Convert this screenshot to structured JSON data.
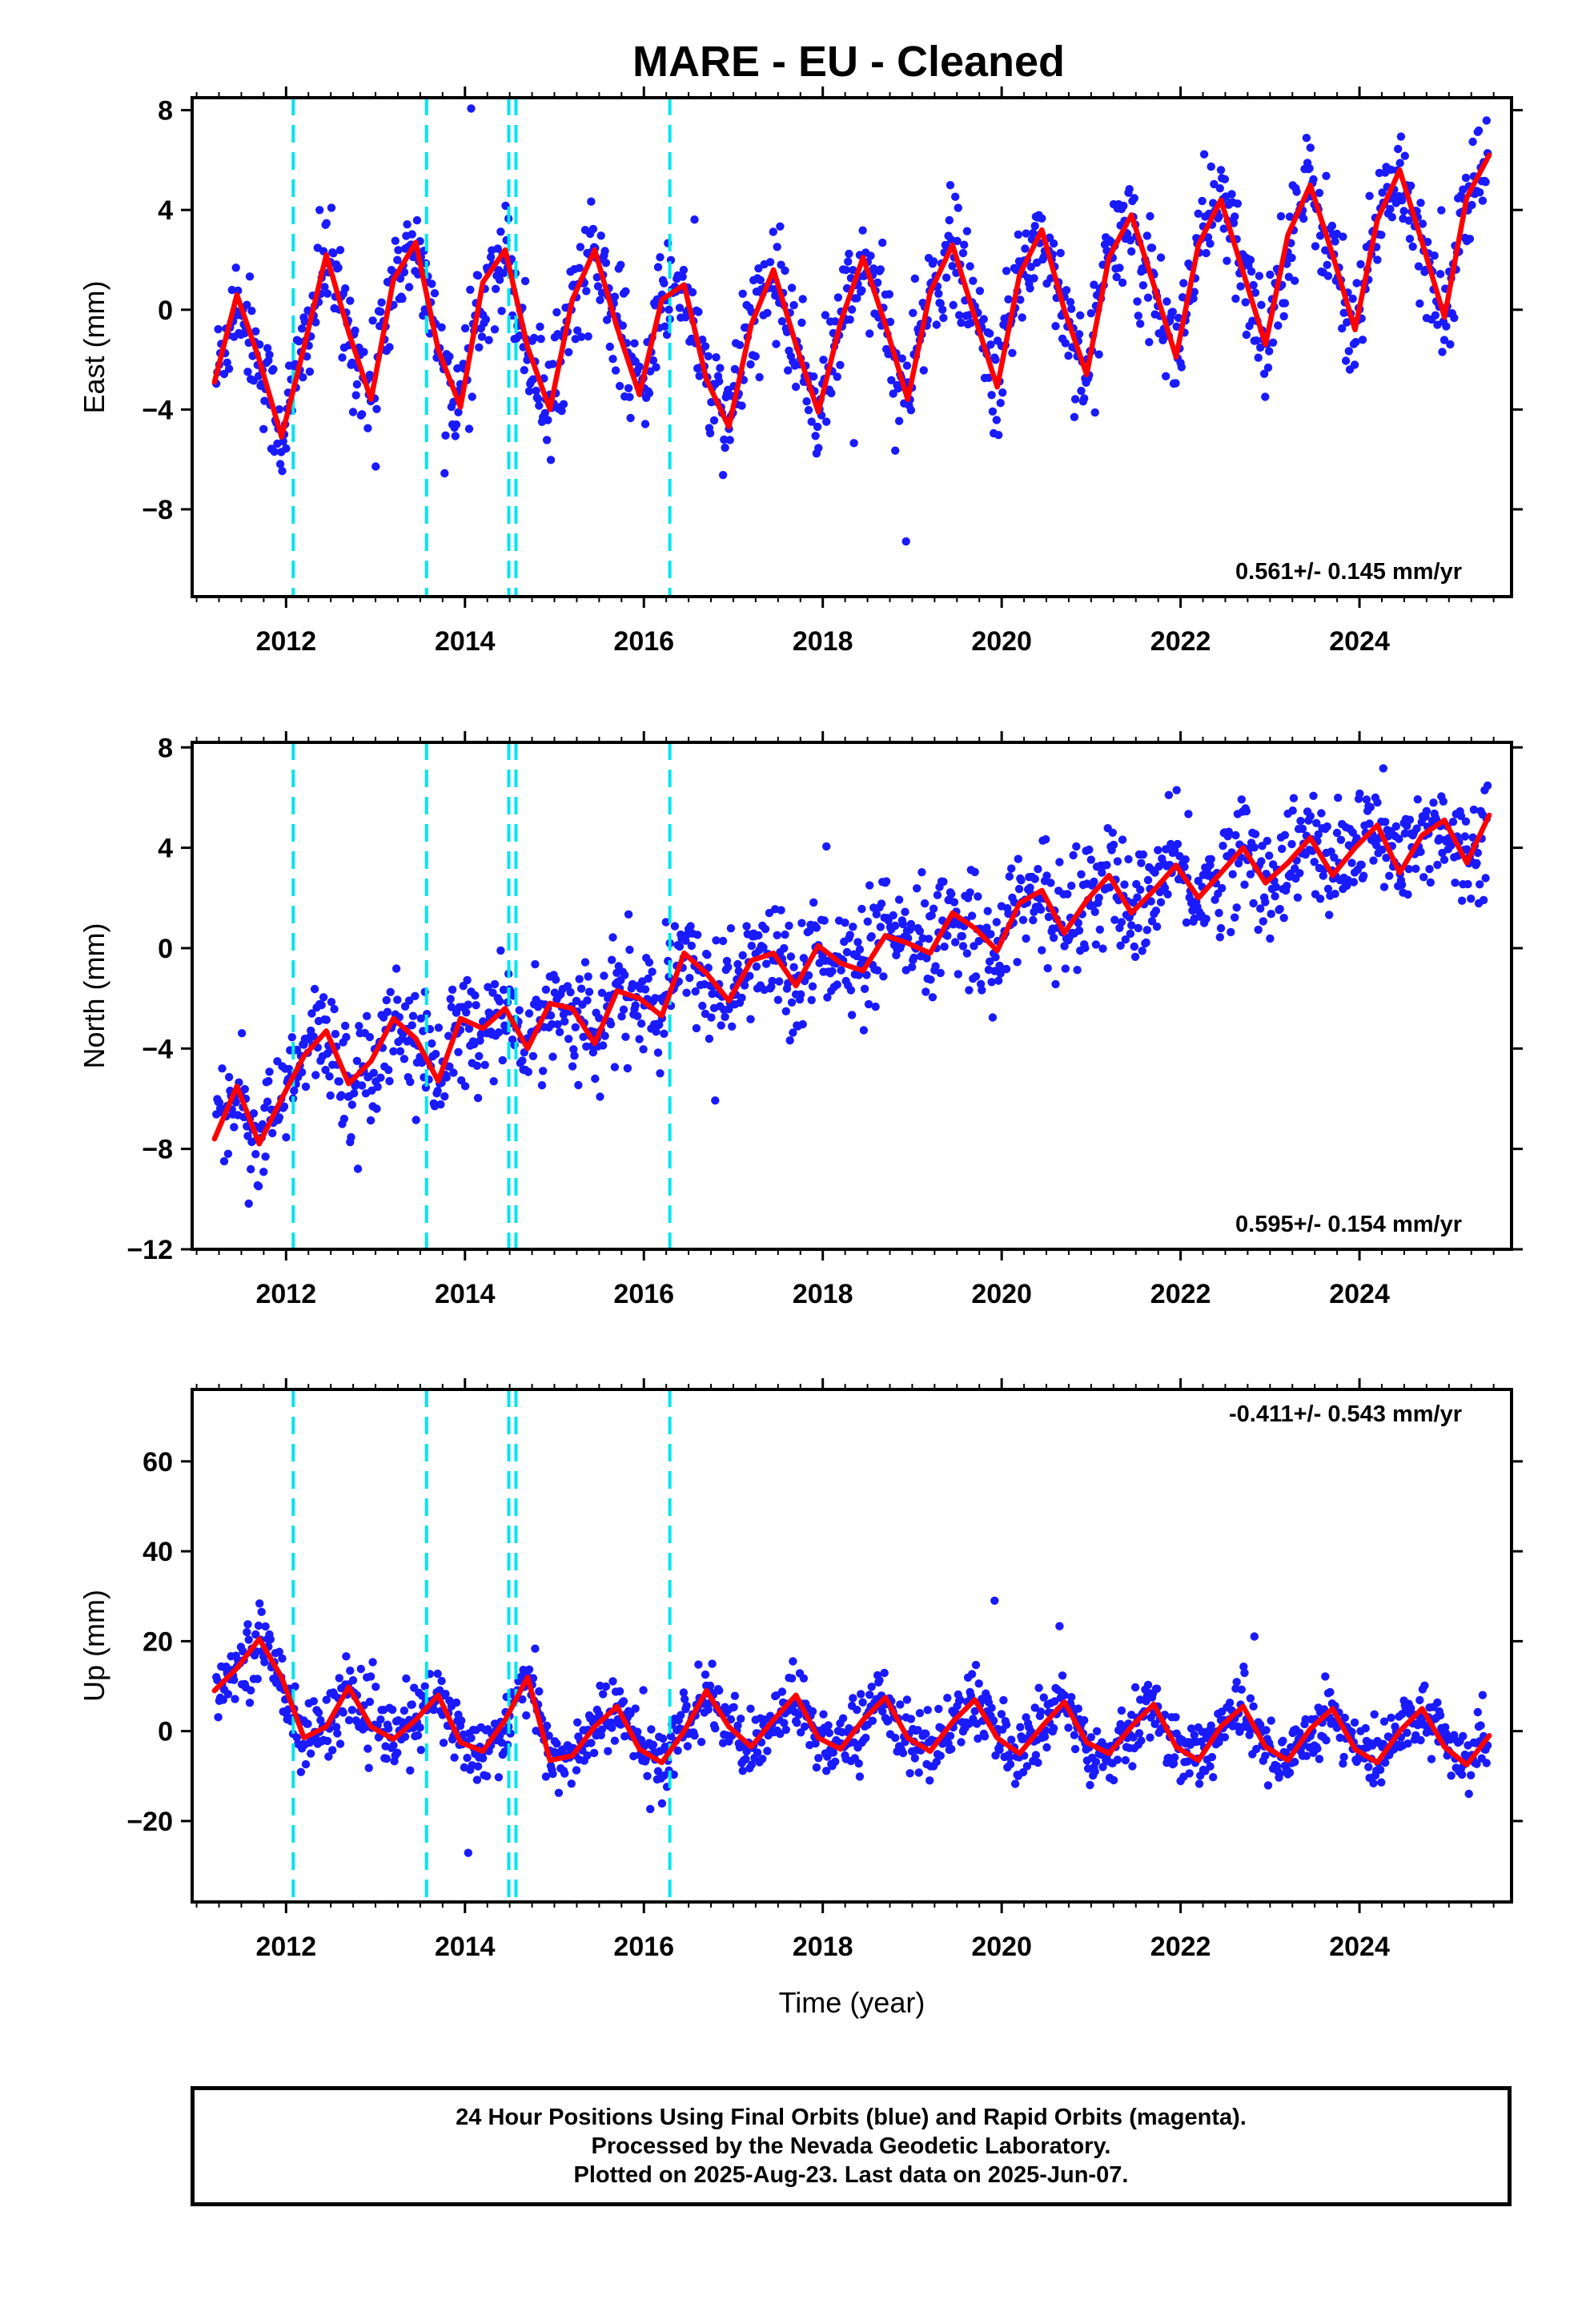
{
  "title": "MARE  - EU - Cleaned",
  "colors": {
    "data_points": "#1a1aff",
    "model_line": "#ff0000",
    "offset_lines": "#00e5ee",
    "frame": "#000000"
  },
  "chart_data": [
    {
      "type": "scatter",
      "id": "east",
      "ylabel": "East (mm)",
      "xlabel": "",
      "xlim": [
        2010.95,
        2025.7
      ],
      "ylim": [
        -11.5,
        8.5
      ],
      "x_ticks": [
        2012,
        2014,
        2016,
        2018,
        2020,
        2022,
        2024
      ],
      "y_ticks": [
        -8,
        -4,
        0,
        4,
        8
      ],
      "y_tick_labels": [
        "−8",
        "−4",
        "0",
        "4",
        "8"
      ],
      "x_tick_labels": [
        "2012",
        "2014",
        "2016",
        "2018",
        "2020",
        "2022",
        "2024"
      ],
      "rate_text": "0.561+/- 0.145 mm/yr",
      "rate_position": "bottom-right",
      "offset_lines": [
        2012.08,
        2013.57,
        2014.49,
        2014.57,
        2016.29
      ],
      "series": [
        {
          "name": "Model",
          "x": [
            2011.2,
            2011.45,
            2011.7,
            2011.95,
            2012.2,
            2012.45,
            2012.7,
            2012.95,
            2013.2,
            2013.45,
            2013.7,
            2013.95,
            2014.2,
            2014.45,
            2014.7,
            2014.95,
            2015.2,
            2015.45,
            2015.7,
            2015.95,
            2016.2,
            2016.45,
            2016.7,
            2016.95,
            2017.2,
            2017.45,
            2017.7,
            2017.95,
            2018.2,
            2018.45,
            2018.7,
            2018.95,
            2019.2,
            2019.45,
            2019.7,
            2019.95,
            2020.2,
            2020.45,
            2020.7,
            2020.95,
            2021.2,
            2021.45,
            2021.7,
            2021.95,
            2022.2,
            2022.45,
            2022.7,
            2022.95,
            2023.2,
            2023.45,
            2023.7,
            2023.95,
            2024.2,
            2024.45,
            2024.7,
            2024.95,
            2025.2,
            2025.45
          ],
          "y": [
            -2.9,
            0.6,
            -2.0,
            -5.1,
            -1.5,
            2.2,
            -0.9,
            -3.6,
            1.2,
            2.7,
            -1.6,
            -3.9,
            1.1,
            2.4,
            -1.5,
            -4.0,
            0.4,
            2.4,
            -0.7,
            -3.4,
            0.4,
            1.0,
            -2.8,
            -4.7,
            -0.6,
            1.6,
            -1.4,
            -4.1,
            -0.5,
            2.1,
            -0.6,
            -3.6,
            0.7,
            2.6,
            -0.3,
            -3.1,
            1.4,
            3.2,
            0.0,
            -2.6,
            2.1,
            3.8,
            1.0,
            -1.9,
            2.6,
            4.4,
            1.5,
            -1.4,
            3.0,
            5.0,
            2.2,
            -0.8,
            3.6,
            5.6,
            2.7,
            -0.3,
            4.5,
            6.2
          ]
        }
      ]
    },
    {
      "type": "scatter",
      "id": "north",
      "ylabel": "North (mm)",
      "xlabel": "",
      "xlim": [
        2010.95,
        2025.7
      ],
      "ylim": [
        -12.0,
        8.2
      ],
      "x_ticks": [
        2012,
        2014,
        2016,
        2018,
        2020,
        2022,
        2024
      ],
      "y_ticks": [
        -12,
        -8,
        -4,
        0,
        4,
        8
      ],
      "y_tick_labels": [
        "−12",
        "−8",
        "−4",
        "0",
        "4",
        "8"
      ],
      "x_tick_labels": [
        "2012",
        "2014",
        "2016",
        "2018",
        "2020",
        "2022",
        "2024"
      ],
      "rate_text": "0.595+/- 0.154 mm/yr",
      "rate_position": "bottom-right",
      "offset_lines": [
        2012.08,
        2013.57,
        2014.49,
        2014.57,
        2016.29
      ],
      "series": [
        {
          "name": "Model",
          "x": [
            2011.2,
            2011.45,
            2011.7,
            2011.95,
            2012.2,
            2012.45,
            2012.7,
            2012.95,
            2013.2,
            2013.45,
            2013.7,
            2013.95,
            2014.2,
            2014.45,
            2014.7,
            2014.95,
            2015.2,
            2015.45,
            2015.7,
            2015.95,
            2016.2,
            2016.45,
            2016.7,
            2016.95,
            2017.2,
            2017.45,
            2017.7,
            2017.95,
            2018.2,
            2018.45,
            2018.7,
            2018.95,
            2019.2,
            2019.45,
            2019.7,
            2019.95,
            2020.2,
            2020.45,
            2020.7,
            2020.95,
            2021.2,
            2021.45,
            2021.7,
            2021.95,
            2022.2,
            2022.45,
            2022.7,
            2022.95,
            2023.2,
            2023.45,
            2023.7,
            2023.95,
            2024.2,
            2024.45,
            2024.7,
            2024.95,
            2025.2,
            2025.45
          ],
          "y": [
            -7.6,
            -5.5,
            -7.8,
            -6.0,
            -4.3,
            -3.3,
            -5.4,
            -4.5,
            -2.8,
            -3.6,
            -5.3,
            -2.8,
            -3.2,
            -2.4,
            -4.0,
            -2.2,
            -2.4,
            -3.8,
            -1.7,
            -2.0,
            -2.7,
            -0.2,
            -1.0,
            -2.1,
            -0.5,
            -0.2,
            -1.5,
            0.1,
            -0.6,
            -0.9,
            0.5,
            0.2,
            -0.2,
            1.4,
            0.8,
            -0.1,
            1.8,
            2.3,
            0.6,
            1.9,
            2.9,
            1.4,
            2.3,
            3.3,
            2.0,
            3.0,
            4.0,
            2.6,
            3.4,
            4.4,
            2.9,
            4.0,
            4.9,
            3.0,
            4.5,
            5.1,
            3.4,
            5.3
          ]
        }
      ]
    },
    {
      "type": "scatter",
      "id": "up",
      "ylabel": "Up (mm)",
      "xlabel": "Time (year)",
      "xlim": [
        2010.95,
        2025.7
      ],
      "ylim": [
        -38.0,
        76.0
      ],
      "x_ticks": [
        2012,
        2014,
        2016,
        2018,
        2020,
        2022,
        2024
      ],
      "y_ticks": [
        -20,
        0,
        20,
        40,
        60
      ],
      "y_tick_labels": [
        "−20",
        "0",
        "20",
        "40",
        "60"
      ],
      "x_tick_labels": [
        "2012",
        "2014",
        "2016",
        "2018",
        "2020",
        "2022",
        "2024"
      ],
      "rate_text": "-0.411+/- 0.543 mm/yr",
      "rate_position": "top-right",
      "offset_lines": [
        2012.08,
        2013.57,
        2014.49,
        2014.57,
        2016.29
      ],
      "series": [
        {
          "name": "Model",
          "x": [
            2011.2,
            2011.45,
            2011.7,
            2011.95,
            2012.2,
            2012.45,
            2012.7,
            2012.95,
            2013.2,
            2013.45,
            2013.7,
            2013.95,
            2014.2,
            2014.45,
            2014.7,
            2014.95,
            2015.2,
            2015.45,
            2015.7,
            2015.95,
            2016.2,
            2016.45,
            2016.7,
            2016.95,
            2017.2,
            2017.45,
            2017.7,
            2017.95,
            2018.2,
            2018.45,
            2018.7,
            2018.95,
            2019.2,
            2019.45,
            2019.7,
            2019.95,
            2020.2,
            2020.45,
            2020.7,
            2020.95,
            2021.2,
            2021.45,
            2021.7,
            2021.95,
            2022.2,
            2022.45,
            2022.7,
            2022.95,
            2023.2,
            2023.45,
            2023.7,
            2023.95,
            2024.2,
            2024.45,
            2024.7,
            2024.95,
            2025.2,
            2025.45
          ],
          "y": [
            9.0,
            14.0,
            20.5,
            12.0,
            -1.5,
            1.0,
            9.8,
            1.0,
            -1.8,
            2.5,
            8.0,
            -2.5,
            -4.5,
            2.5,
            12.0,
            -6.5,
            -5.5,
            1.0,
            5.5,
            -4.0,
            -7.0,
            0.0,
            9.0,
            1.0,
            -3.5,
            2.5,
            8.0,
            -1.5,
            -4.0,
            2.5,
            7.5,
            -1.5,
            -4.5,
            2.0,
            7.0,
            -1.5,
            -5.0,
            1.0,
            6.5,
            -2.5,
            -5.0,
            1.0,
            6.0,
            -3.5,
            -6.5,
            1.0,
            5.5,
            -3.5,
            -6.5,
            0.5,
            5.0,
            -4.0,
            -7.0,
            0.0,
            5.0,
            -3.5,
            -7.5,
            -1.0
          ]
        }
      ]
    }
  ],
  "footer": {
    "line1": "24 Hour Positions Using Final Orbits (blue) and Rapid Orbits (magenta).",
    "line2": "Processed by the Nevada Geodetic Laboratory.",
    "line3": "Plotted on 2025-Aug-23. Last data on 2025-Jun-07."
  }
}
